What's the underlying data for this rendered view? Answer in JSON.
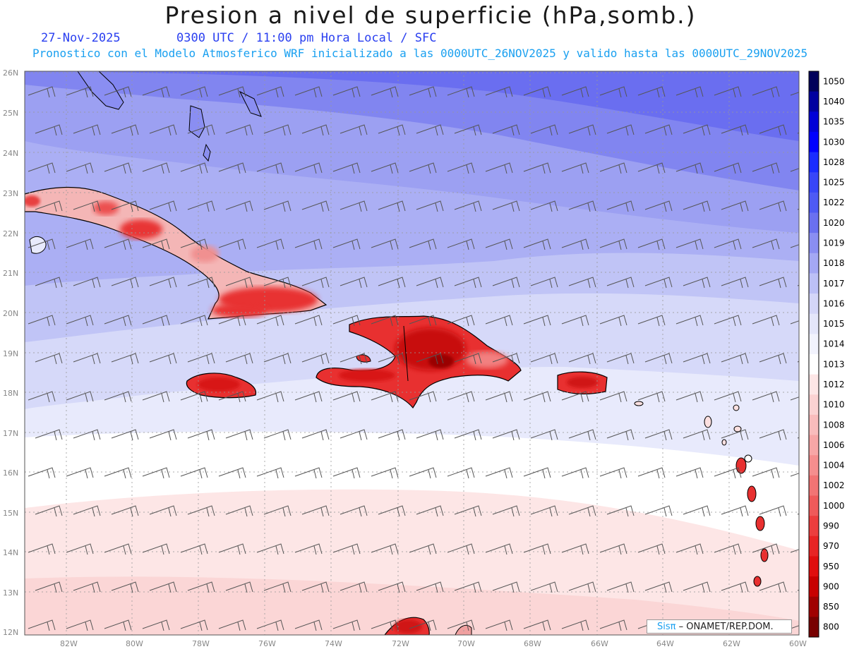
{
  "header": {
    "title": "Presion a nivel de superficie (hPa,somb.)",
    "date": "27-Nov-2025",
    "time": "0300 UTC / 11:00 pm Hora Local / SFC",
    "subtitle": "Pronostico con el Modelo Atmosferico WRF inicializado a las 0000UTC_26NOV2025 y valido hasta las  0000UTC_29NOV2025"
  },
  "map": {
    "lat_labels": [
      "26N",
      "25N",
      "24N",
      "23N",
      "22N",
      "21N",
      "20N",
      "19N",
      "18N",
      "17N",
      "16N",
      "15N",
      "14N",
      "13N",
      "12N"
    ],
    "lon_labels": [
      "82W",
      "80W",
      "78W",
      "76W",
      "74W",
      "72W",
      "70W",
      "68W",
      "66W",
      "64W",
      "62W",
      "60W"
    ],
    "colors": {
      "deep_blue": "#6464f0",
      "mid_blue": "#a8acf4",
      "light_blue": "#d0d4f8",
      "pale_blue": "#e8eafc",
      "pink": "#fce0e0",
      "land_red": "#e83030"
    }
  },
  "colorbar": {
    "labels": [
      "1050",
      "1040",
      "1035",
      "1030",
      "1028",
      "1025",
      "1022",
      "1020",
      "1019",
      "1018",
      "1017",
      "1016",
      "1015",
      "1014",
      "1013",
      "1012",
      "1010",
      "1008",
      "1006",
      "1004",
      "1002",
      "1000",
      "990",
      "970",
      "950",
      "900",
      "850",
      "800"
    ],
    "colors": [
      "#00005a",
      "#0000a0",
      "#0000d8",
      "#0000ff",
      "#1a2cff",
      "#3846f8",
      "#4e5af4",
      "#6a70f0",
      "#8a8ef2",
      "#a4a8f4",
      "#bcc0f6",
      "#d4d6f8",
      "#e4e6fa",
      "#f2f3fd",
      "#ffffff",
      "#fde6e6",
      "#fbd2d2",
      "#f9bcbc",
      "#f7a6a6",
      "#f58e8e",
      "#f27474",
      "#ef5a5a",
      "#ec3e3e",
      "#e82424",
      "#e00e0e",
      "#c80000",
      "#a00000",
      "#780000"
    ]
  },
  "credit": {
    "sis": "Sisπ",
    "org": " – ONAMET/REP.DOM."
  }
}
